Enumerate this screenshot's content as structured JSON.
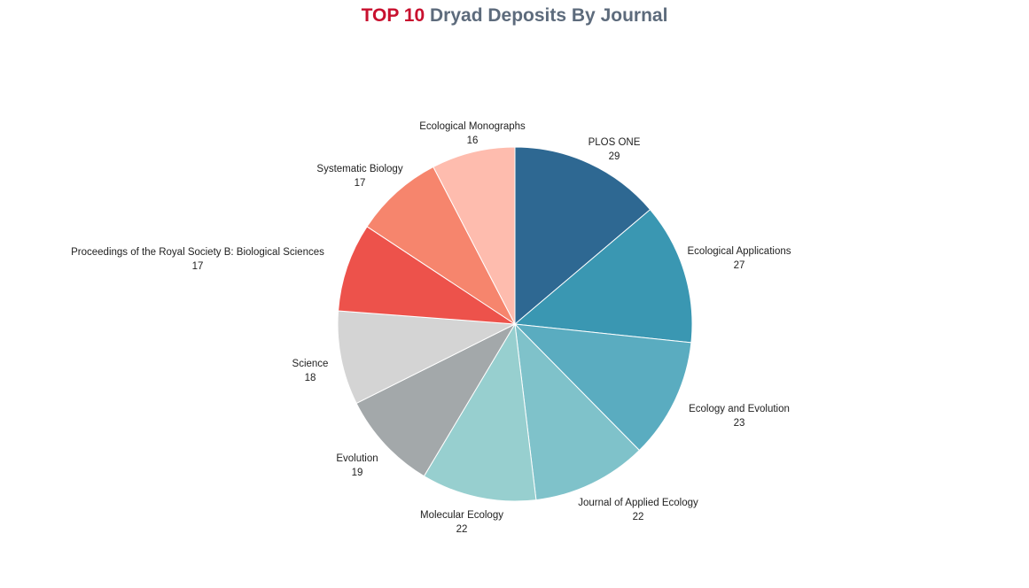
{
  "title": {
    "accent": "TOP 10",
    "main": "Dryad Deposits By Journal"
  },
  "chart_data": {
    "type": "pie",
    "title": "TOP 10 Dryad Deposits By Journal",
    "slices": [
      {
        "label": "PLOS ONE",
        "value": 29,
        "color": "#2e6892"
      },
      {
        "label": "Ecological Applications",
        "value": 27,
        "color": "#3a97b2"
      },
      {
        "label": "Ecology and Evolution",
        "value": 23,
        "color": "#5aacc0"
      },
      {
        "label": "Journal of Applied Ecology",
        "value": 22,
        "color": "#7fc2ca"
      },
      {
        "label": "Molecular Ecology",
        "value": 22,
        "color": "#97cfcf"
      },
      {
        "label": "Evolution",
        "value": 19,
        "color": "#a3a8aa"
      },
      {
        "label": "Science",
        "value": 18,
        "color": "#d4d4d4"
      },
      {
        "label": "Proceedings of the Royal Society B: Biological Sciences",
        "value": 17,
        "color": "#ed524b"
      },
      {
        "label": "Systematic Biology",
        "value": 17,
        "color": "#f6856d"
      },
      {
        "label": "Ecological Monographs",
        "value": 16,
        "color": "#febcae"
      }
    ]
  }
}
